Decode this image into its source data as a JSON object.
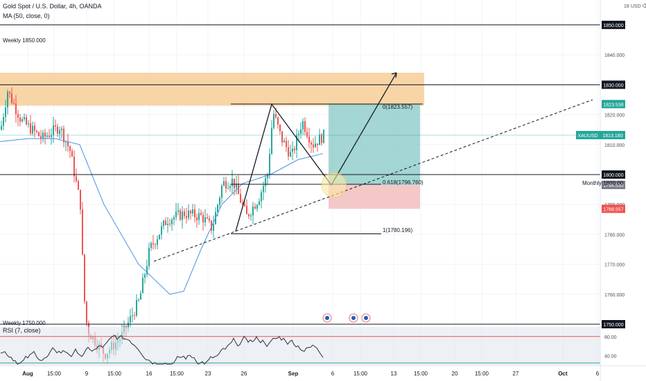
{
  "chart_data": [
    {
      "type": "candlestick",
      "title": "Gold Spot / U.S. Dollar, 4h, OANDA",
      "indicator": "MA (50, close, 0)",
      "symbol": "XAUUSD",
      "last_price": "1813.180",
      "y_ticks": [
        "1850.000",
        "1840.000",
        "1830.000",
        "1823.538",
        "1820.000",
        "1810.000",
        "1800.000",
        "1796.530",
        "1790.000",
        "1788.557",
        "1780.000",
        "1770.000",
        "1760.000",
        "1750.000"
      ],
      "ylim": [
        1750,
        1856
      ],
      "x_ticks": [
        "Aug",
        "15:00",
        "9",
        "15:00",
        "16",
        "15:00",
        "23",
        "26",
        "Sep",
        "6",
        "15:00",
        "13",
        "15:00",
        "20",
        "15:00",
        "27",
        "Oct",
        "6"
      ],
      "scale_label": "18 USD ⌫",
      "horizontal_levels": [
        {
          "label": "Weekly 1850.000",
          "price": 1850
        },
        {
          "label": "Monthly 1800.00",
          "price": 1800
        },
        {
          "label": "Weekly 1750.000",
          "price": 1750
        },
        {
          "label": "1830.000",
          "price": 1830
        }
      ],
      "supply_zone": {
        "low": 1823,
        "high": 1834
      },
      "fib_labels": [
        {
          "text": "0(1823.557)",
          "price": 1823.557
        },
        {
          "text": "0.618(1796.760)",
          "price": 1796.76
        },
        {
          "text": "1(1780.196)",
          "price": 1780.196
        }
      ],
      "position": {
        "entry": 1796.53,
        "target": 1823.538,
        "stop": 1788.557
      },
      "ma_color": "#4a90e2",
      "up_color": "#26a69a",
      "down_color": "#ef5350"
    },
    {
      "type": "line",
      "title": "RSI (7, close)",
      "y_ticks": [
        "80.00",
        "40.00"
      ],
      "ylim": [
        20,
        100
      ],
      "overbought": 80,
      "oversold": 20
    }
  ]
}
